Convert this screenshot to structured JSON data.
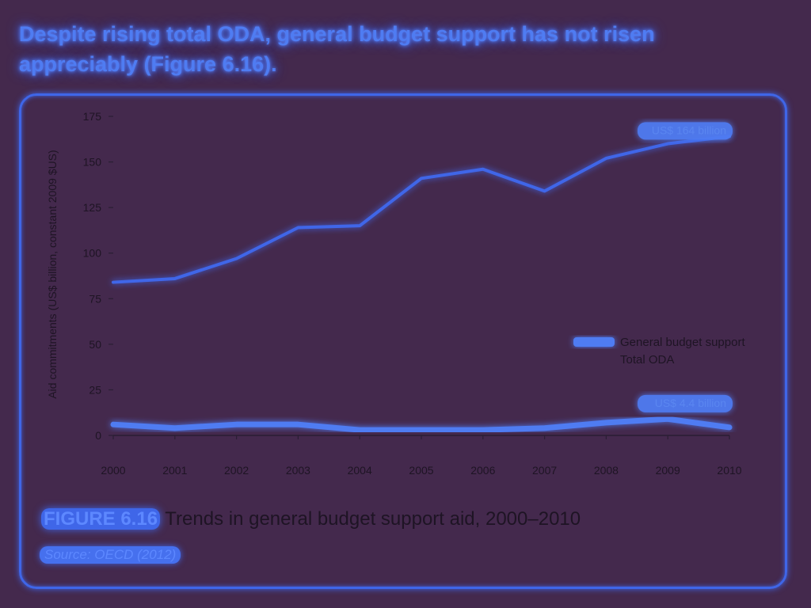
{
  "headline": "Despite rising total ODA, general budget support has not risen appreciably (Figure 6.16).",
  "caption": {
    "figure_label": "FIGURE 6.16",
    "text": "Trends in general budget support aid, 2000–2010"
  },
  "source": "Source: OECD (2012)",
  "colors": {
    "total_oda": "#3f66e8",
    "gbs": "#4f7cf2",
    "background": "#44294d"
  },
  "chart_data": {
    "type": "line",
    "title": "",
    "xlabel": "",
    "ylabel": "Aid commitments (US$ billion, constant 2009 $US)",
    "x": [
      2000,
      2001,
      2002,
      2003,
      2004,
      2005,
      2006,
      2007,
      2008,
      2009,
      2010
    ],
    "xticks": [
      "2000",
      "2001",
      "2002",
      "2003",
      "2004",
      "2005",
      "2006",
      "2007",
      "2008",
      "2009",
      "2010"
    ],
    "ylim": [
      0,
      175
    ],
    "yticks": [
      "0",
      "25",
      "50",
      "75",
      "100",
      "125",
      "150",
      "175"
    ],
    "series": [
      {
        "name": "General budget support",
        "values": [
          6,
          4,
          6,
          6,
          3,
          3,
          3,
          4,
          7,
          9,
          4.4
        ]
      },
      {
        "name": "Total ODA",
        "values": [
          84,
          86,
          97,
          114,
          115,
          141,
          146,
          134,
          152,
          160,
          164
        ]
      }
    ],
    "legend": {
      "position": "right"
    },
    "annotations": [
      {
        "text": "US$ 164 billion",
        "x": 2010,
        "y": 164
      },
      {
        "text": "US$ 4.4 billion",
        "x": 2010,
        "y": 4.4
      }
    ],
    "grid": false
  }
}
